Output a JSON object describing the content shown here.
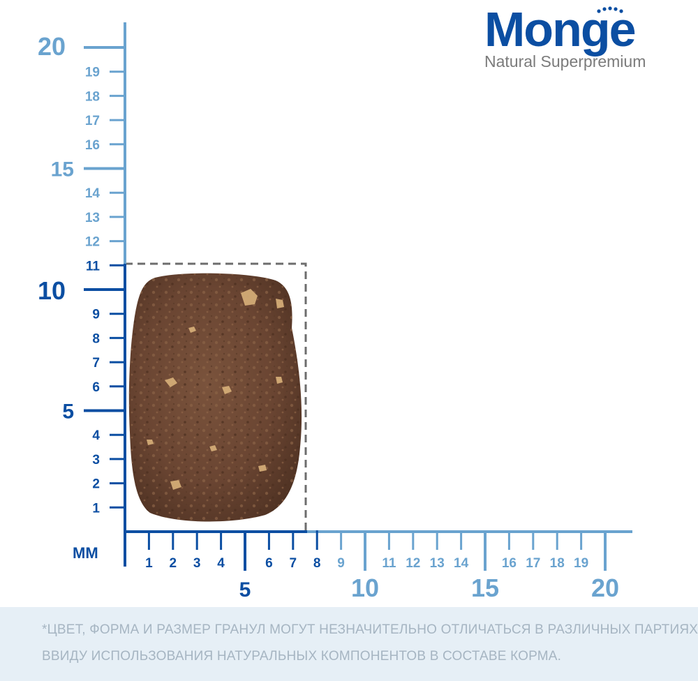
{
  "brand": {
    "name": "Monge",
    "tagline": "Natural Superpremium"
  },
  "colors": {
    "dark_blue": "#0b4ea2",
    "light_blue": "#6aa3cf",
    "kibble": "#6e4a36",
    "dashed_box": "#6d6d6d",
    "footer_bg": "#e6eff6",
    "footer_text": "#a6b5c2"
  },
  "ruler": {
    "unit_label": "мм",
    "y_major": [
      {
        "label": "5",
        "value": 5,
        "tone": "dark"
      },
      {
        "label": "10",
        "value": 10,
        "tone": "dark"
      },
      {
        "label": "15",
        "value": 15,
        "tone": "light"
      },
      {
        "label": "20",
        "value": 20,
        "tone": "light"
      }
    ],
    "y_minor": [
      {
        "label": "1",
        "value": 1,
        "tone": "dark"
      },
      {
        "label": "2",
        "value": 2,
        "tone": "dark"
      },
      {
        "label": "3",
        "value": 3,
        "tone": "dark"
      },
      {
        "label": "4",
        "value": 4,
        "tone": "dark"
      },
      {
        "label": "6",
        "value": 6,
        "tone": "dark"
      },
      {
        "label": "7",
        "value": 7,
        "tone": "dark"
      },
      {
        "label": "8",
        "value": 8,
        "tone": "dark"
      },
      {
        "label": "9",
        "value": 9,
        "tone": "dark"
      },
      {
        "label": "11",
        "value": 11,
        "tone": "dark"
      },
      {
        "label": "12",
        "value": 12,
        "tone": "light"
      },
      {
        "label": "13",
        "value": 13,
        "tone": "light"
      },
      {
        "label": "14",
        "value": 14,
        "tone": "light"
      },
      {
        "label": "16",
        "value": 16,
        "tone": "light"
      },
      {
        "label": "17",
        "value": 17,
        "tone": "light"
      },
      {
        "label": "18",
        "value": 18,
        "tone": "light"
      },
      {
        "label": "19",
        "value": 19,
        "tone": "light"
      }
    ],
    "x_major": [
      {
        "label": "5",
        "value": 5,
        "tone": "dark"
      },
      {
        "label": "10",
        "value": 10,
        "tone": "light"
      },
      {
        "label": "15",
        "value": 15,
        "tone": "light"
      },
      {
        "label": "20",
        "value": 20,
        "tone": "light"
      }
    ],
    "x_minor": [
      {
        "label": "1",
        "value": 1,
        "tone": "dark"
      },
      {
        "label": "2",
        "value": 2,
        "tone": "dark"
      },
      {
        "label": "3",
        "value": 3,
        "tone": "dark"
      },
      {
        "label": "4",
        "value": 4,
        "tone": "dark"
      },
      {
        "label": "6",
        "value": 6,
        "tone": "dark"
      },
      {
        "label": "7",
        "value": 7,
        "tone": "dark"
      },
      {
        "label": "8",
        "value": 8,
        "tone": "dark"
      },
      {
        "label": "9",
        "value": 9,
        "tone": "light"
      },
      {
        "label": "11",
        "value": 11,
        "tone": "light"
      },
      {
        "label": "12",
        "value": 12,
        "tone": "light"
      },
      {
        "label": "13",
        "value": 13,
        "tone": "light"
      },
      {
        "label": "14",
        "value": 14,
        "tone": "light"
      },
      {
        "label": "16",
        "value": 16,
        "tone": "light"
      },
      {
        "label": "17",
        "value": 17,
        "tone": "light"
      },
      {
        "label": "18",
        "value": 18,
        "tone": "light"
      },
      {
        "label": "19",
        "value": 19,
        "tone": "light"
      }
    ]
  },
  "kibble_size_mm": {
    "width": 8,
    "height": 11
  },
  "disclaimer": {
    "line1": "*ЦВЕТ, ФОРМА И РАЗМЕР ГРАНУЛ МОГУТ НЕЗНАЧИТЕЛЬНО ОТЛИЧАТЬСЯ В РАЗЛИЧНЫХ ПАРТИЯХ,",
    "line2": "ВВИДУ ИСПОЛЬЗОВАНИЯ НАТУРАЛЬНЫХ КОМПОНЕНТОВ В СОСТАВЕ КОРМА."
  }
}
